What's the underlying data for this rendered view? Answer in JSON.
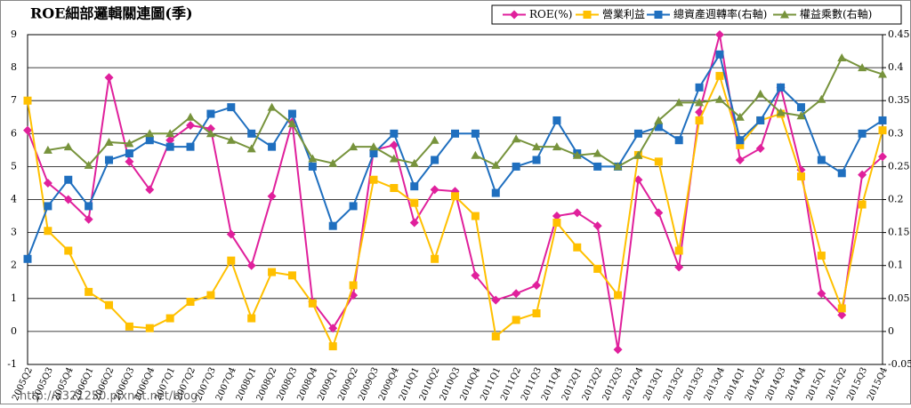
{
  "chart_data": {
    "type": "line",
    "title": "ROE細部邏輯關連圖(季)",
    "watermark": "http://a321250.pixnet.net/blog",
    "categories": [
      "2005Q2",
      "2005Q3",
      "2005Q4",
      "2006Q1",
      "2006Q2",
      "2006Q3",
      "2006Q4",
      "2007Q1",
      "2007Q2",
      "2007Q3",
      "2007Q4",
      "2008Q1",
      "2008Q2",
      "2008Q3",
      "2008Q4",
      "2009Q1",
      "2009Q2",
      "2009Q3",
      "2009Q4",
      "2010Q1",
      "2010Q2",
      "2010Q3",
      "2010Q4",
      "2011Q1",
      "2011Q2",
      "2011Q3",
      "2011Q4",
      "2012Q1",
      "2012Q2",
      "2012Q3",
      "2012Q4",
      "2013Q1",
      "2013Q2",
      "2013Q3",
      "2013Q4",
      "2014Q1",
      "2014Q2",
      "2014Q3",
      "2014Q4",
      "2015Q1",
      "2015Q2",
      "2015Q3",
      "2015Q4"
    ],
    "ylim": [
      -1,
      9
    ],
    "yticks": [
      -1,
      0,
      1,
      2,
      3,
      4,
      5,
      6,
      7,
      8,
      9
    ],
    "y2lim": [
      -0.05,
      0.45
    ],
    "y2ticks": [
      -0.05,
      0,
      0.05,
      0.1,
      0.15,
      0.2,
      0.25,
      0.3,
      0.35,
      0.4,
      0.45
    ],
    "grid": true,
    "legend": "top-right",
    "series": [
      {
        "name": "ROE(%)",
        "color": "#e0209c",
        "marker": "diamond",
        "values": [
          6.1,
          4.5,
          4.0,
          3.4,
          7.7,
          5.15,
          4.3,
          5.8,
          6.25,
          6.15,
          2.95,
          2.0,
          4.1,
          6.35,
          0.9,
          0.1,
          1.1,
          5.5,
          5.65,
          3.3,
          4.3,
          4.25,
          1.7,
          0.95,
          1.15,
          1.4,
          3.5,
          3.6,
          3.2,
          -0.55,
          4.6,
          3.6,
          1.95,
          6.65,
          9.0,
          5.2,
          5.55,
          7.4,
          4.9,
          1.15,
          0.5,
          4.75,
          5.3
        ]
      },
      {
        "name": "營業利益",
        "color": "#ffc000",
        "marker": "square",
        "values": [
          7.0,
          3.05,
          2.45,
          1.2,
          0.8,
          0.15,
          0.1,
          0.4,
          0.9,
          1.1,
          2.15,
          0.4,
          1.8,
          1.7,
          0.85,
          -0.45,
          1.4,
          4.6,
          4.35,
          3.9,
          2.2,
          4.1,
          3.5,
          -0.15,
          0.35,
          0.55,
          3.3,
          2.55,
          1.9,
          1.1,
          5.35,
          5.15,
          2.45,
          6.4,
          7.75,
          5.65,
          6.4,
          6.6,
          4.7,
          2.3,
          0.7,
          3.85,
          6.1
        ]
      },
      {
        "name": "總資產週轉率(右軸)",
        "color": "#1f6fbf",
        "marker": "square",
        "axis": "y2",
        "values": [
          0.11,
          0.19,
          0.23,
          0.19,
          0.26,
          0.27,
          0.29,
          0.28,
          0.28,
          0.33,
          0.34,
          0.3,
          0.28,
          0.33,
          0.25,
          0.16,
          0.19,
          0.27,
          0.3,
          0.22,
          0.26,
          0.3,
          0.3,
          0.21,
          0.25,
          0.26,
          0.32,
          0.27,
          0.25,
          0.25,
          0.3,
          0.31,
          0.29,
          0.37,
          0.42,
          0.29,
          0.32,
          0.37,
          0.34,
          0.26,
          0.24,
          0.3,
          0.32
        ]
      },
      {
        "name": "權益乘數(右軸)",
        "color": "#77933c",
        "marker": "triangle",
        "axis": "y2",
        "values": [
          null,
          0.275,
          0.28,
          0.252,
          0.287,
          0.285,
          0.3,
          0.3,
          0.325,
          0.3,
          0.29,
          0.277,
          0.34,
          0.315,
          0.262,
          0.255,
          0.28,
          0.28,
          0.262,
          0.255,
          0.29,
          null,
          0.267,
          0.252,
          0.292,
          0.28,
          0.28,
          0.267,
          0.27,
          0.25,
          0.267,
          0.32,
          0.347,
          0.347,
          0.352,
          0.325,
          0.36,
          0.332,
          0.327,
          0.352,
          0.415,
          0.4,
          0.39
        ]
      }
    ]
  }
}
